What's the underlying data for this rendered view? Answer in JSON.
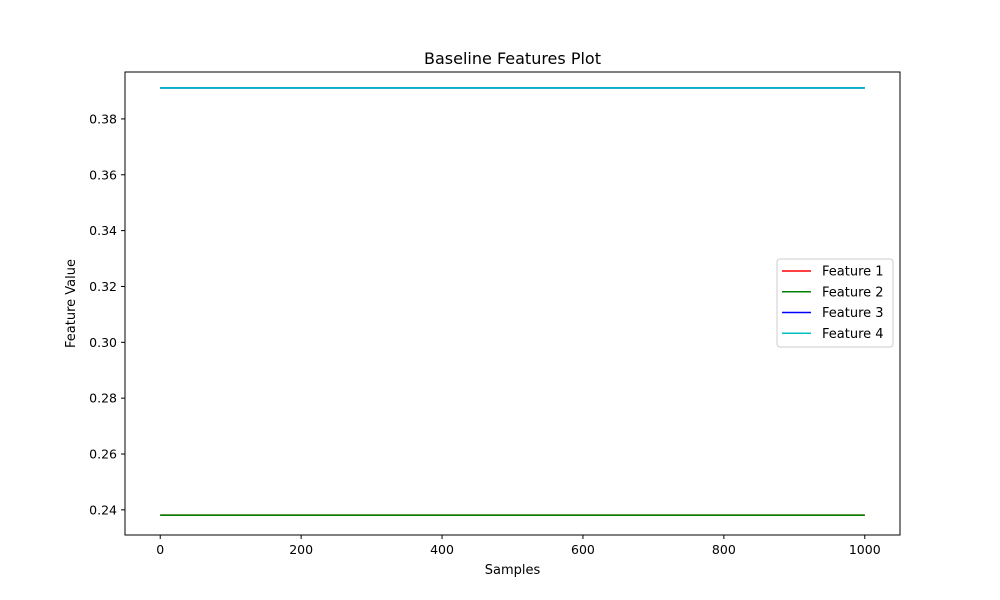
{
  "chart_data": {
    "type": "line",
    "title": "Baseline Features Plot",
    "xlabel": "Samples",
    "ylabel": "Feature Value",
    "xlim": [
      -50,
      1050
    ],
    "ylim": [
      0.231,
      0.3968
    ],
    "xticks": [
      0,
      200,
      400,
      600,
      800,
      1000
    ],
    "yticks": [
      0.24,
      0.26,
      0.28,
      0.3,
      0.32,
      0.34,
      0.36,
      0.38
    ],
    "ytick_labels": [
      "0.24",
      "0.26",
      "0.28",
      "0.30",
      "0.32",
      "0.34",
      "0.36",
      "0.38"
    ],
    "legend_position": "center-right",
    "grid": false,
    "series": [
      {
        "name": "Feature 1",
        "color": "#ff0000",
        "x": [
          0,
          1000
        ],
        "y": [
          0.2381,
          0.2381
        ]
      },
      {
        "name": "Feature 2",
        "color": "#008000",
        "x": [
          0,
          1000
        ],
        "y": [
          0.2381,
          0.2381
        ]
      },
      {
        "name": "Feature 3",
        "color": "#0000ff",
        "x": [
          0,
          1000
        ],
        "y": [
          0.3911,
          0.3911
        ]
      },
      {
        "name": "Feature 4",
        "color": "#00bfbf",
        "x": [
          0,
          1000
        ],
        "y": [
          0.3911,
          0.3911
        ]
      }
    ]
  }
}
